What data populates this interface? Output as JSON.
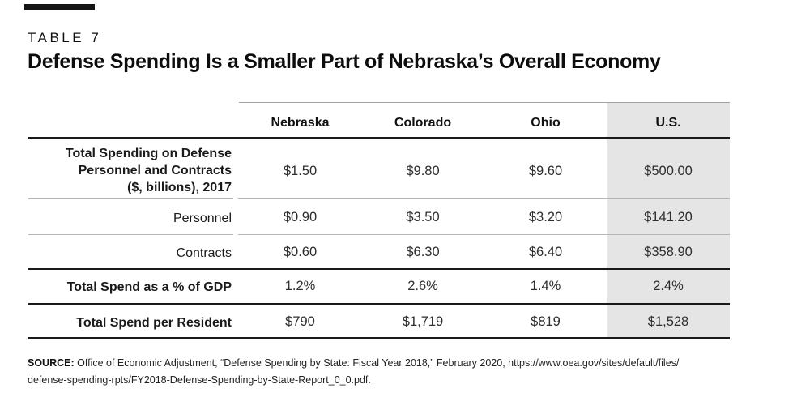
{
  "kicker": "TABLE 7",
  "title": "Defense Spending Is a Smaller Part of Nebraska’s Overall Economy",
  "table": {
    "columns": [
      "Nebraska",
      "Colorado",
      "Ohio",
      "U.S."
    ],
    "highlight_column": "U.S.",
    "rows": [
      {
        "label": "Total Spending on Defense Personnel and Contracts ($, billions), 2017",
        "label_lines": [
          "Total Spending on Defense",
          "Personnel and Contracts",
          "($, billions), 2017"
        ],
        "bold": true,
        "values": [
          "$1.50",
          "$9.80",
          "$9.60",
          "$500.00"
        ]
      },
      {
        "label": "Personnel",
        "bold": false,
        "values": [
          "$0.90",
          "$3.50",
          "$3.20",
          "$141.20"
        ]
      },
      {
        "label": "Contracts",
        "bold": false,
        "values": [
          "$0.60",
          "$6.30",
          "$6.40",
          "$358.90"
        ]
      },
      {
        "label": "Total Spend as a % of GDP",
        "bold": true,
        "values": [
          "1.2%",
          "2.6%",
          "1.4%",
          "2.4%"
        ]
      },
      {
        "label": "Total Spend per Resident",
        "bold": true,
        "values": [
          "$790",
          "$1,719",
          "$819",
          "$1,528"
        ]
      }
    ]
  },
  "chart_data": {
    "type": "table",
    "title": "Defense Spending Is a Smaller Part of Nebraska’s Overall Economy",
    "categories": [
      "Nebraska",
      "Colorado",
      "Ohio",
      "U.S."
    ],
    "series": [
      {
        "name": "Total Spending on Defense Personnel and Contracts ($, billions), 2017",
        "values": [
          1.5,
          9.8,
          9.6,
          500.0
        ]
      },
      {
        "name": "Personnel ($, billions)",
        "values": [
          0.9,
          3.5,
          3.2,
          141.2
        ]
      },
      {
        "name": "Contracts ($, billions)",
        "values": [
          0.6,
          6.3,
          6.4,
          358.9
        ]
      },
      {
        "name": "Total Spend as a % of GDP",
        "values": [
          1.2,
          2.6,
          1.4,
          2.4
        ]
      },
      {
        "name": "Total Spend per Resident ($)",
        "values": [
          790,
          1719,
          819,
          1528
        ]
      }
    ]
  },
  "source": {
    "prefix": "SOURCE:",
    "line1": "Office of Economic Adjustment, “Defense Spending by State: Fiscal Year 2018,” February 2020, https://www.oea.gov/sites/default/files/",
    "line2": "defense-spending-rpts/FY2018-Defense-Spending-by-State-Report_0_0.pdf."
  },
  "colors": {
    "highlight_bg": "#e5e5e5",
    "rule_dark": "#1a1a1a",
    "rule_light": "#b5b5b5",
    "text": "#1a1a1a"
  }
}
